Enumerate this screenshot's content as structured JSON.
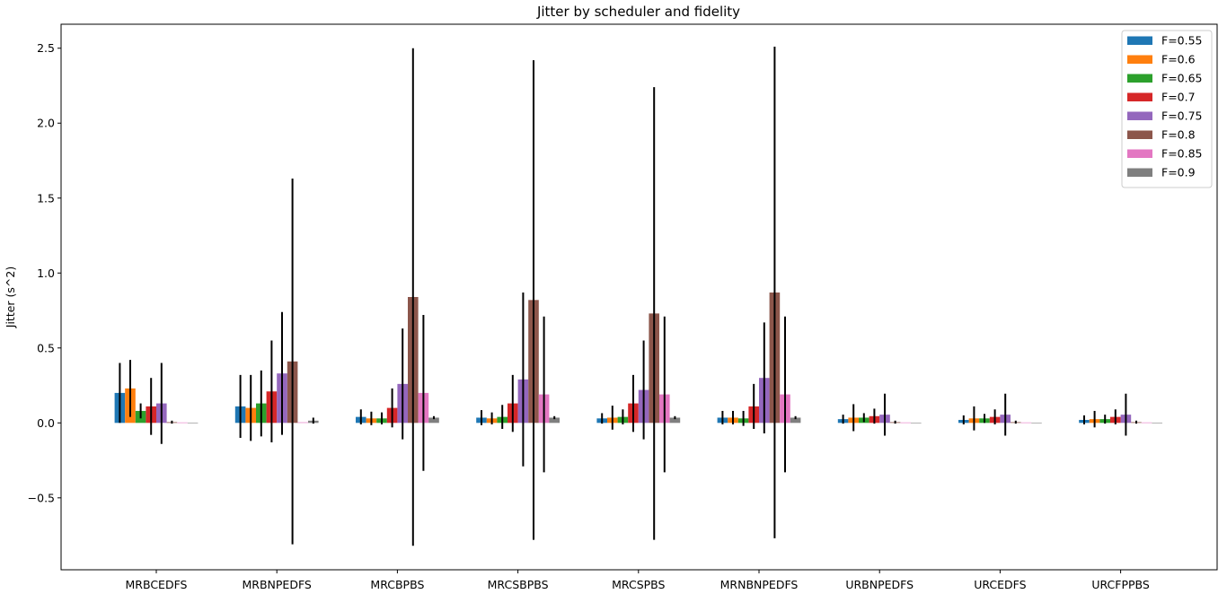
{
  "chart_data": {
    "type": "bar",
    "title": "Jitter by scheduler and fidelity",
    "xlabel": "",
    "ylabel": "Jitter (s^2)",
    "ylim": [
      -0.98,
      2.66
    ],
    "yticks": [
      -0.5,
      0.0,
      0.5,
      1.0,
      1.5,
      2.0,
      2.5
    ],
    "ytick_labels": [
      "−0.5",
      "0.0",
      "0.5",
      "1.0",
      "1.5",
      "2.0",
      "2.5"
    ],
    "grid": false,
    "legend_position": "top-right",
    "categories": [
      "MRBCEDFS",
      "MRBNPEDFS",
      "MRCBPBS",
      "MRCSBPBS",
      "MRCSPBS",
      "MRNBNPEDFS",
      "URBNPEDFS",
      "URCEDFS",
      "URCFPPBS"
    ],
    "series": [
      {
        "name": "F=0.55",
        "color": "#1f77b4",
        "values": [
          0.2,
          0.11,
          0.04,
          0.035,
          0.03,
          0.035,
          0.025,
          0.02,
          0.02
        ],
        "errors": [
          0.2,
          0.21,
          0.05,
          0.05,
          0.035,
          0.045,
          0.03,
          0.03,
          0.03
        ]
      },
      {
        "name": "F=0.6",
        "color": "#ff7f0e",
        "values": [
          0.23,
          0.1,
          0.03,
          0.03,
          0.035,
          0.035,
          0.035,
          0.03,
          0.025
        ],
        "errors": [
          0.19,
          0.22,
          0.045,
          0.04,
          0.08,
          0.045,
          0.09,
          0.08,
          0.055
        ]
      },
      {
        "name": "F=0.65",
        "color": "#2ca02c",
        "values": [
          0.08,
          0.13,
          0.03,
          0.04,
          0.04,
          0.03,
          0.035,
          0.03,
          0.025
        ],
        "errors": [
          0.05,
          0.22,
          0.04,
          0.08,
          0.05,
          0.05,
          0.03,
          0.03,
          0.03
        ]
      },
      {
        "name": "F=0.7",
        "color": "#d62728",
        "values": [
          0.11,
          0.21,
          0.1,
          0.13,
          0.13,
          0.11,
          0.045,
          0.04,
          0.04
        ],
        "errors": [
          0.19,
          0.34,
          0.13,
          0.19,
          0.19,
          0.15,
          0.05,
          0.05,
          0.05
        ]
      },
      {
        "name": "F=0.75",
        "color": "#9467bd",
        "values": [
          0.13,
          0.33,
          0.26,
          0.29,
          0.22,
          0.3,
          0.055,
          0.055,
          0.055
        ],
        "errors": [
          0.27,
          0.41,
          0.37,
          0.58,
          0.33,
          0.37,
          0.14,
          0.14,
          0.14
        ]
      },
      {
        "name": "F=0.8",
        "color": "#8c564b",
        "values": [
          0.005,
          0.41,
          0.84,
          0.82,
          0.73,
          0.87,
          0.005,
          0.005,
          0.005
        ],
        "errors": [
          0.01,
          1.22,
          1.66,
          1.6,
          1.51,
          1.64,
          0.01,
          0.01,
          0.01
        ]
      },
      {
        "name": "F=0.85",
        "color": "#e377c2",
        "values": [
          0.003,
          0.004,
          0.2,
          0.19,
          0.19,
          0.19,
          0.003,
          0.003,
          0.003
        ],
        "errors": [
          0.0,
          0.0,
          0.52,
          0.52,
          0.52,
          0.52,
          0.0,
          0.0,
          0.0
        ]
      },
      {
        "name": "F=0.9",
        "color": "#7f7f7f",
        "values": [
          0.002,
          0.015,
          0.035,
          0.035,
          0.035,
          0.035,
          0.002,
          0.002,
          0.002
        ],
        "errors": [
          0.0,
          0.02,
          0.01,
          0.01,
          0.01,
          0.01,
          0.0,
          0.0,
          0.0
        ]
      }
    ]
  }
}
